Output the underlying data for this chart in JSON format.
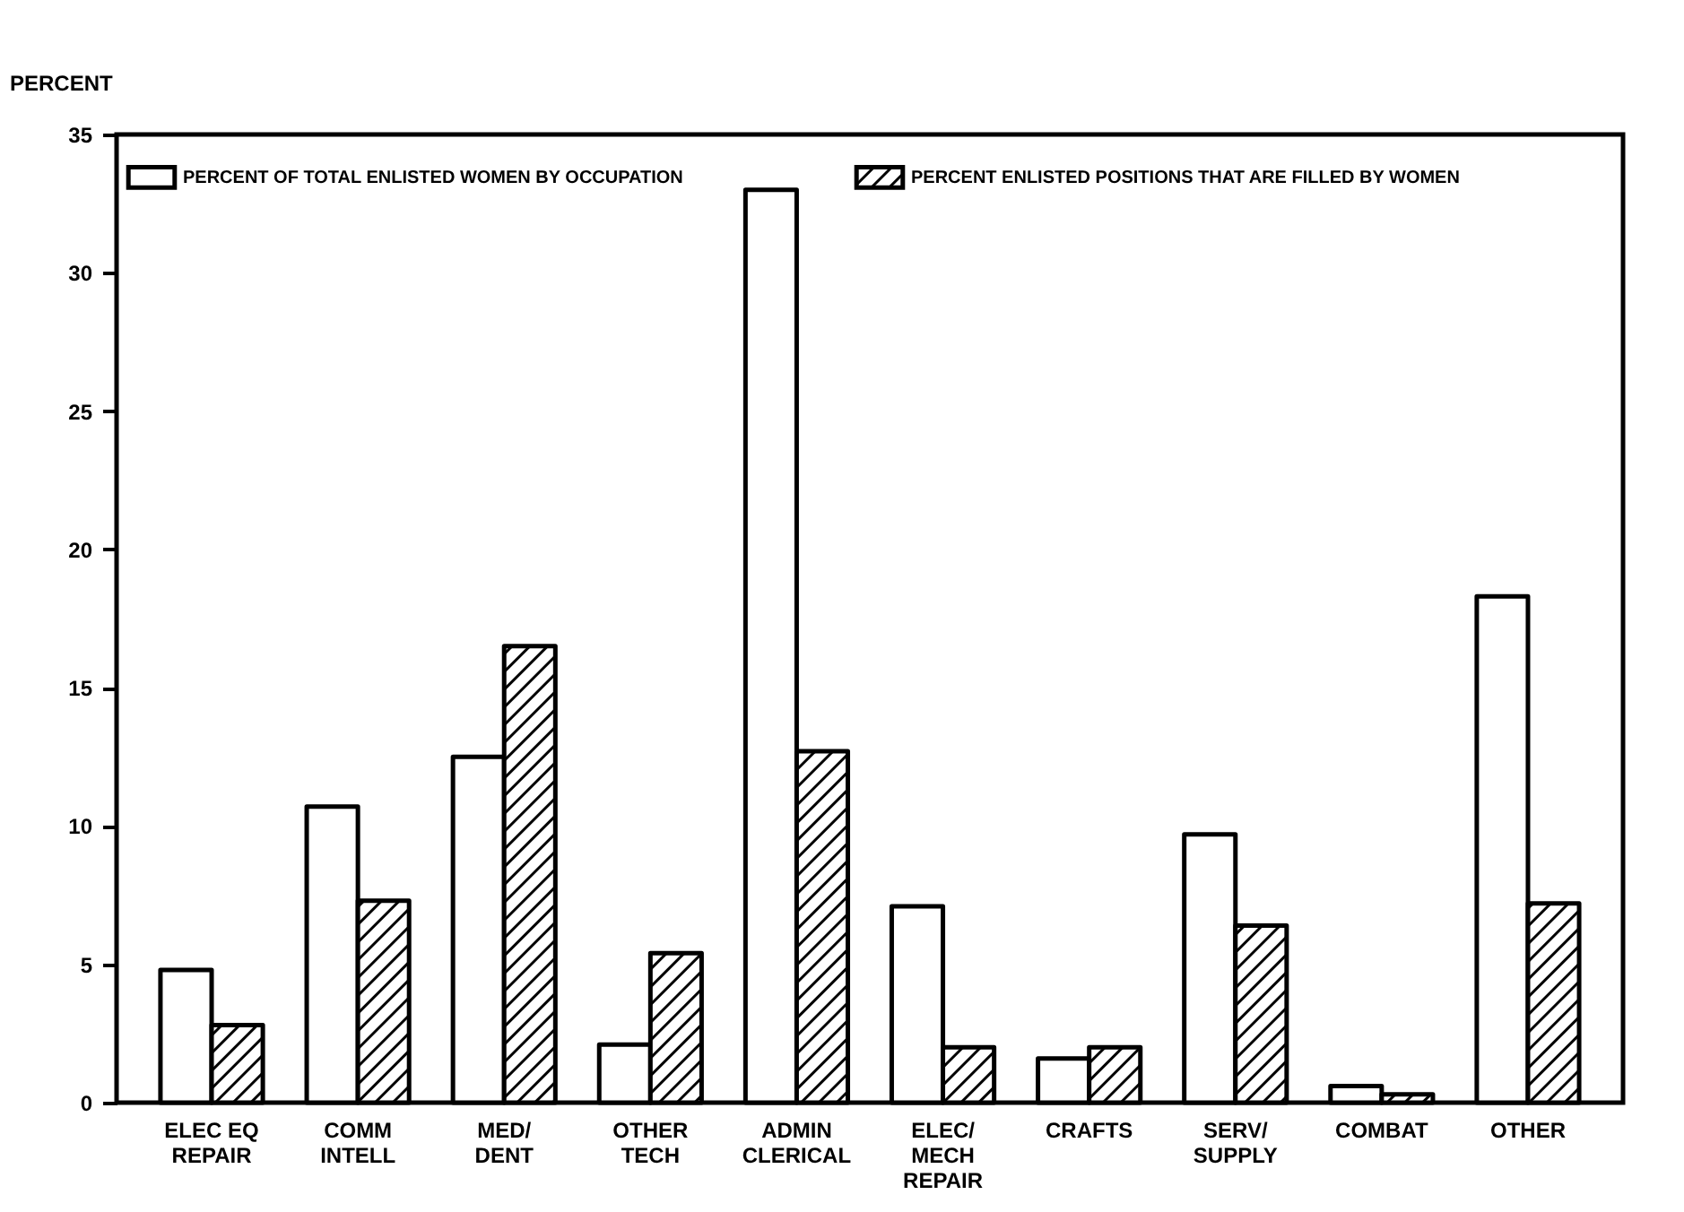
{
  "chart_data": {
    "type": "bar",
    "ylabel": "PERCENT",
    "categories": [
      "ELEC EQ\nREPAIR",
      "COMM\nINTELL",
      "MED/\nDENT",
      "OTHER\nTECH",
      "ADMIN\nCLERICAL",
      "ELEC/\nMECH\nREPAIR",
      "CRAFTS",
      "SERV/\nSUPPLY",
      "COMBAT",
      "OTHER"
    ],
    "series": [
      {
        "name": "PERCENT OF TOTAL ENLISTED WOMEN BY OCCUPATION",
        "color": "#ffffff",
        "values": [
          4.8,
          10.7,
          12.5,
          2.1,
          33.0,
          7.1,
          1.6,
          9.7,
          0.6,
          18.3
        ]
      },
      {
        "name": "PERCENT ENLISTED POSITIONS THAT ARE FILLED BY WOMEN",
        "color": "#000000",
        "values": [
          2.8,
          7.3,
          16.5,
          5.4,
          12.7,
          2.0,
          2.0,
          6.4,
          0.3,
          7.2
        ]
      }
    ],
    "ylim": [
      0,
      35
    ],
    "yticks": [
      0,
      5,
      10,
      15,
      20,
      25,
      30,
      35
    ],
    "grid": false,
    "legend": "top"
  }
}
